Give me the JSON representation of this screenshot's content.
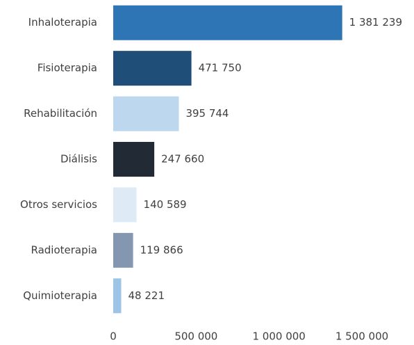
{
  "chart_data": {
    "type": "bar",
    "orientation": "horizontal",
    "categories": [
      "Inhaloterapia",
      "Fisioterapia",
      "Rehabilitación",
      "Diálisis",
      "Otros servicios",
      "Radioterapia",
      "Quimioterapia"
    ],
    "values": [
      1381239,
      471750,
      395744,
      247660,
      140589,
      119866,
      48221
    ],
    "value_labels": [
      "1 381 239",
      "471 750",
      "395 744",
      "247 660",
      "140 589",
      "119 866",
      "48 221"
    ],
    "colors": [
      "#2e75b6",
      "#1f4e79",
      "#bdd7ee",
      "#222a35",
      "#deebf7",
      "#8497b0",
      "#9dc3e6"
    ],
    "xlim": [
      0,
      1500000
    ],
    "xticks": [
      0,
      {
        "value": 500000,
        "label": "500 000"
      },
      {
        "value": 1000000,
        "label": "1 000 000"
      },
      {
        "value": 1500000,
        "label": "1 500 000"
      }
    ],
    "grid": false
  }
}
